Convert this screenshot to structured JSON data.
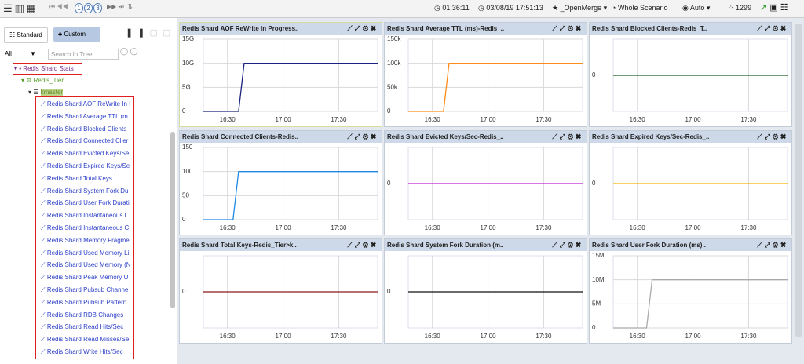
{
  "toolbar": {
    "pages": [
      "1",
      "2",
      "3"
    ],
    "elapsed": "01:36:11",
    "datetime": "03/08/19 17:51:13",
    "merge": "_OpenMerge",
    "scenario": "Whole Scenario",
    "refresh": "Auto",
    "count": "1299"
  },
  "sidebar": {
    "tabs": [
      "Standard",
      "Custom"
    ],
    "filter": "All",
    "search_placeholder": "Search In Tree",
    "tree": {
      "group": "Redis Shard Stats",
      "tier": "Redis_Tier",
      "host": "kmaster",
      "items": [
        "Redis Shard AOF ReWrite In I",
        "Redis Shard Average TTL (m",
        "Redis Shard Blocked Clients",
        "Redis Shard Connected Clier",
        "Redis Shard Evicted Keys/Se",
        "Redis Shard Expired Keys/Se",
        "Redis Shard Total Keys",
        "Redis Shard System Fork Du",
        "Redis Shard User Fork Durati",
        "Redis Shard Instantaneous I",
        "Redis Shard Instantaneous C",
        "Redis Shard Memory Fragme",
        "Redis Shard Used Memory Li",
        "Redis Shard Used Memory (N",
        "Redis Shard Peak Memory U",
        "Redis Shard Pubsub Channe",
        "Redis Shard Pubsub Pattern",
        "Redis Shard RDB Changes",
        "Redis Shard Read Hits/Sec",
        "Redis Shard Read Misses/Se",
        "Redis Shard Write Hits/Sec"
      ]
    }
  },
  "panels": [
    {
      "title": "Redis Shard AOF ReWrite In Progress..",
      "type": "line",
      "color": "#1a237e",
      "x": [
        977,
        996,
        999,
        1071
      ],
      "values": [
        0,
        0,
        10000000000,
        10000000000
      ],
      "xlim": [
        977,
        1071
      ],
      "ylim": [
        0,
        15000000000
      ],
      "xticks": [
        {
          "value": 990,
          "label": "16:30"
        },
        {
          "value": 1020,
          "label": "17:00"
        },
        {
          "value": 1050,
          "label": "17:30"
        }
      ],
      "yticks": [
        0,
        {
          "value": 5000000000,
          "label": "5G"
        },
        {
          "value": 10000000000,
          "label": "10G"
        },
        {
          "value": 15000000000,
          "label": "15G"
        }
      ]
    },
    {
      "title": "Redis Shard Average TTL (ms)-Redis_..",
      "type": "line",
      "color": "#ff8c1a",
      "x": [
        977,
        996,
        999,
        1071
      ],
      "values": [
        0,
        0,
        100000,
        100000
      ],
      "xlim": [
        977,
        1071
      ],
      "ylim": [
        0,
        150000
      ],
      "xticks": [
        {
          "value": 990,
          "label": "16:30"
        },
        {
          "value": 1020,
          "label": "17:00"
        },
        {
          "value": 1050,
          "label": "17:30"
        }
      ],
      "yticks": [
        0,
        {
          "value": 50000,
          "label": "50k"
        },
        {
          "value": 100000,
          "label": "100k"
        },
        {
          "value": 150000,
          "label": "150k"
        }
      ]
    },
    {
      "title": "Redis Shard Blocked Clients-Redis_T..",
      "type": "line",
      "color": "#1b5e20",
      "x": [
        977,
        1071
      ],
      "values": [
        0,
        0
      ],
      "xlim": [
        977,
        1071
      ],
      "ylim": [
        -1,
        1
      ],
      "xticks": [
        {
          "value": 990,
          "label": "16:30"
        },
        {
          "value": 1020,
          "label": "17:00"
        },
        {
          "value": 1050,
          "label": "17:30"
        }
      ],
      "yticks": [
        0
      ]
    },
    {
      "title": "Redis Shard Connected Clients-Redis..",
      "type": "line",
      "color": "#1e88e5",
      "x": [
        977,
        993,
        996,
        1071
      ],
      "values": [
        0,
        0,
        100,
        100
      ],
      "xlim": [
        977,
        1071
      ],
      "ylim": [
        0,
        150
      ],
      "xticks": [
        {
          "value": 990,
          "label": "16:30"
        },
        {
          "value": 1020,
          "label": "17:00"
        },
        {
          "value": 1050,
          "label": "17:30"
        }
      ],
      "yticks": [
        0,
        50,
        100,
        150
      ]
    },
    {
      "title": "Redis Shard Evicted Keys/Sec-Redis_..",
      "type": "line",
      "color": "#c026d3",
      "x": [
        977,
        1071
      ],
      "values": [
        0,
        0
      ],
      "xlim": [
        977,
        1071
      ],
      "ylim": [
        -1,
        1
      ],
      "xticks": [
        {
          "value": 990,
          "label": "16:30"
        },
        {
          "value": 1020,
          "label": "17:00"
        },
        {
          "value": 1050,
          "label": "17:30"
        }
      ],
      "yticks": [
        0
      ]
    },
    {
      "title": "Redis Shard Expired Keys/Sec-Redis_..",
      "type": "line",
      "color": "#f0b400",
      "x": [
        977,
        1071
      ],
      "values": [
        0,
        0
      ],
      "xlim": [
        977,
        1071
      ],
      "ylim": [
        -1,
        1
      ],
      "xticks": [
        {
          "value": 990,
          "label": "16:30"
        },
        {
          "value": 1020,
          "label": "17:00"
        },
        {
          "value": 1050,
          "label": "17:30"
        }
      ],
      "yticks": [
        0
      ]
    },
    {
      "title": "Redis Shard Total Keys-Redis_Tier>k..",
      "type": "line",
      "color": "#8b1a1a",
      "x": [
        977,
        1071
      ],
      "values": [
        0,
        0
      ],
      "xlim": [
        977,
        1071
      ],
      "ylim": [
        -1,
        1
      ],
      "xticks": [
        {
          "value": 990,
          "label": "16:30"
        },
        {
          "value": 1020,
          "label": "17:00"
        },
        {
          "value": 1050,
          "label": "17:30"
        }
      ],
      "yticks": [
        0
      ]
    },
    {
      "title": "Redis Shard System Fork Duration (m..",
      "type": "line",
      "color": "#111111",
      "x": [
        977,
        1071
      ],
      "values": [
        0,
        0
      ],
      "xlim": [
        977,
        1071
      ],
      "ylim": [
        -1,
        1
      ],
      "xticks": [
        {
          "value": 990,
          "label": "16:30"
        },
        {
          "value": 1020,
          "label": "17:00"
        },
        {
          "value": 1050,
          "label": "17:30"
        }
      ],
      "yticks": [
        0
      ]
    },
    {
      "title": "Redis Shard User Fork Duration (ms)..",
      "type": "line",
      "color": "#aaaaaa",
      "x": [
        977,
        995,
        998,
        1071
      ],
      "values": [
        0,
        0,
        10000000,
        10000000
      ],
      "xlim": [
        977,
        1071
      ],
      "ylim": [
        0,
        15000000
      ],
      "xticks": [
        {
          "value": 990,
          "label": "16:30"
        },
        {
          "value": 1020,
          "label": "17:00"
        },
        {
          "value": 1050,
          "label": "17:30"
        }
      ],
      "yticks": [
        0,
        {
          "value": 5000000,
          "label": "5M"
        },
        {
          "value": 10000000,
          "label": "10M"
        },
        {
          "value": 15000000,
          "label": "15M"
        }
      ]
    }
  ]
}
